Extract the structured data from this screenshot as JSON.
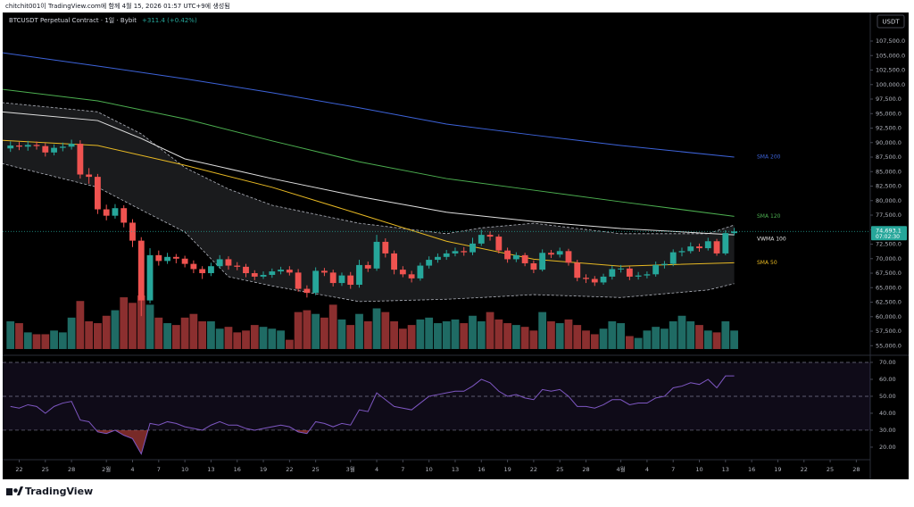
{
  "header": {
    "caption": "chitchit001이 TradingView.com에 함께 4월 15, 2026 01:57 UTC+9에 생성됨"
  },
  "chart_data": [
    {
      "type": "candlestick",
      "title": "BTCUSDT Perpetual Contract · 1일 · Bybit",
      "change": "+311.4 (+0.42%)",
      "currency": "USDT",
      "price_label": {
        "value": 74693.1,
        "label": "74,693.1"
      },
      "countdown": "07:02:30",
      "up_color": "#26a69a",
      "down_color": "#ef5350",
      "open": [
        89000,
        89500,
        89300,
        89600,
        89400,
        88300,
        89100,
        89300,
        89800,
        84500,
        84100,
        78500,
        77400,
        78700,
        76200,
        73100,
        62800,
        70600,
        69600,
        70300,
        70000,
        69100,
        68200,
        67500,
        68700,
        69900,
        68800,
        68600,
        67500,
        66900,
        67200,
        67800,
        68100,
        67600,
        64800,
        64100,
        67900,
        67600,
        65800,
        67100,
        65500,
        68900,
        68300,
        72900,
        70900,
        68100,
        67300,
        66600,
        68800,
        69800,
        70300,
        70900,
        71300,
        71100,
        72600,
        74100,
        73800,
        71400,
        69900,
        70600,
        69200,
        68100,
        71000,
        70700,
        71300,
        69300,
        66700,
        66500,
        65900,
        66900,
        68200,
        68300,
        66900,
        67100,
        67300,
        68900,
        69100,
        71100,
        71300,
        72100,
        71800,
        73000,
        70900,
        74400
      ],
      "high": [
        90200,
        90100,
        90300,
        90200,
        89900,
        89700,
        90000,
        90500,
        90400,
        85600,
        84600,
        79300,
        79400,
        79200,
        76800,
        73700,
        71800,
        71400,
        71000,
        70800,
        70500,
        69700,
        68700,
        69300,
        70600,
        70400,
        69400,
        69100,
        68000,
        67800,
        68300,
        68600,
        68700,
        68200,
        65400,
        68500,
        68400,
        68100,
        67600,
        67700,
        69800,
        69500,
        74100,
        73500,
        71400,
        68700,
        67900,
        69300,
        70400,
        70900,
        71500,
        71900,
        72000,
        73600,
        75000,
        74700,
        74200,
        71900,
        71100,
        71000,
        69700,
        71600,
        71500,
        71900,
        71700,
        69800,
        67300,
        67000,
        67400,
        68800,
        68900,
        68700,
        67700,
        67800,
        69500,
        69600,
        71600,
        71900,
        72800,
        72600,
        73600,
        73400,
        74900,
        75300
      ],
      "low": [
        88400,
        88700,
        88600,
        88800,
        87600,
        87800,
        88500,
        88800,
        83800,
        82900,
        77700,
        76600,
        76900,
        75400,
        72000,
        60100,
        62300,
        68800,
        69100,
        69200,
        68500,
        67500,
        66500,
        67000,
        68300,
        68100,
        68000,
        66800,
        66300,
        66500,
        66700,
        67300,
        67100,
        64300,
        63300,
        63700,
        67000,
        65200,
        65300,
        64800,
        65000,
        67700,
        67900,
        70200,
        67300,
        66800,
        65900,
        66200,
        68300,
        69300,
        69800,
        70400,
        70500,
        70600,
        72200,
        73100,
        70900,
        69300,
        69400,
        68700,
        67500,
        67800,
        70100,
        70200,
        68800,
        66100,
        65800,
        65300,
        65500,
        66400,
        67600,
        66300,
        66400,
        66600,
        66900,
        68300,
        68700,
        70400,
        70900,
        71200,
        71400,
        70500,
        70600,
        74000
      ],
      "close": [
        89500,
        89300,
        89600,
        89400,
        88300,
        89100,
        89300,
        89800,
        84500,
        84100,
        78500,
        77400,
        78700,
        76200,
        73100,
        62800,
        70600,
        69600,
        70300,
        70000,
        69100,
        68200,
        67500,
        68700,
        69900,
        68800,
        68600,
        67500,
        66900,
        67200,
        67800,
        68100,
        67600,
        64800,
        64100,
        67900,
        67600,
        65800,
        67100,
        65500,
        68900,
        68300,
        72900,
        70900,
        68100,
        67300,
        66600,
        68800,
        69800,
        70300,
        70900,
        71300,
        71100,
        72600,
        74100,
        73800,
        71400,
        69900,
        70600,
        69200,
        68100,
        71000,
        70700,
        71300,
        69300,
        66700,
        66500,
        65900,
        66900,
        68200,
        68300,
        66900,
        67100,
        67300,
        68900,
        69100,
        71100,
        71300,
        72100,
        71800,
        73000,
        70900,
        74400,
        74693.1
      ],
      "volume": [
        30,
        28,
        18,
        16,
        16,
        20,
        18,
        34,
        52,
        30,
        28,
        36,
        42,
        56,
        50,
        58,
        48,
        34,
        28,
        26,
        34,
        38,
        30,
        30,
        22,
        24,
        18,
        20,
        26,
        24,
        22,
        20,
        10,
        40,
        42,
        38,
        34,
        48,
        32,
        26,
        38,
        30,
        44,
        40,
        30,
        22,
        26,
        32,
        34,
        28,
        30,
        32,
        28,
        36,
        30,
        40,
        32,
        28,
        26,
        24,
        20,
        40,
        30,
        28,
        32,
        26,
        20,
        16,
        22,
        30,
        28,
        14,
        12,
        20,
        24,
        22,
        30,
        36,
        30,
        26,
        20,
        18,
        30,
        20
      ],
      "overlays": [
        {
          "name": "SMA 200",
          "color": "#3d63d9",
          "x": [
            -1,
            10,
            20,
            30,
            40,
            50,
            60,
            70,
            83
          ],
          "values": [
            105500,
            103200,
            101000,
            98600,
            96000,
            93200,
            91300,
            89500,
            87500
          ]
        },
        {
          "name": "SMA 120",
          "color": "#4caf50",
          "x": [
            -1,
            10,
            20,
            30,
            40,
            50,
            60,
            70,
            83
          ],
          "values": [
            99200,
            97200,
            94100,
            90300,
            86700,
            83800,
            81800,
            79800,
            77300
          ]
        },
        {
          "name": "VWMA 100",
          "color": "#e0e0e0",
          "x": [
            -1,
            10,
            15,
            20,
            30,
            40,
            50,
            60,
            70,
            83
          ],
          "values": [
            95300,
            93800,
            90700,
            87200,
            83800,
            80700,
            78000,
            76400,
            75200,
            74100
          ]
        },
        {
          "name": "SMA 50",
          "color": "#e8b923",
          "x": [
            -1,
            10,
            20,
            30,
            40,
            50,
            60,
            70,
            83
          ],
          "values": [
            90400,
            89500,
            86100,
            82300,
            77700,
            73000,
            69900,
            68700,
            69300
          ]
        }
      ],
      "band": {
        "x": [
          -1,
          10,
          15,
          20,
          25,
          30,
          40,
          50,
          54,
          60,
          70,
          80,
          83
        ],
        "upper": [
          96900,
          95300,
          91500,
          85700,
          82000,
          79200,
          76100,
          74300,
          75300,
          76100,
          74300,
          74300,
          75800
        ],
        "lower": [
          86400,
          82300,
          78400,
          74600,
          66900,
          65300,
          62600,
          63000,
          63300,
          63800,
          63300,
          64600,
          65700
        ]
      },
      "ylim": [
        53350,
        112270
      ],
      "yticks": [
        {
          "value": 55000,
          "label": "55,000.0"
        },
        {
          "value": 57500,
          "label": "57,500.0"
        },
        {
          "value": 60000,
          "label": "60,000.0"
        },
        {
          "value": 62500,
          "label": "62,500.0"
        },
        {
          "value": 65000,
          "label": "65,000.0"
        },
        {
          "value": 67500,
          "label": "67,500.0"
        },
        {
          "value": 70000,
          "label": "70,000.0"
        },
        {
          "value": 72500,
          "label": "72,500.0"
        },
        {
          "value": 75000,
          "label": "75,000.0"
        },
        {
          "value": 77500,
          "label": "77,500.0"
        },
        {
          "value": 80000,
          "label": "80,000.0"
        },
        {
          "value": 82500,
          "label": "82,500.0"
        },
        {
          "value": 85000,
          "label": "85,000.0"
        },
        {
          "value": 87500,
          "label": "87,500.0"
        },
        {
          "value": 90000,
          "label": "90,000.0"
        },
        {
          "value": 92500,
          "label": "92,500.0"
        },
        {
          "value": 95000,
          "label": "95,000.0"
        },
        {
          "value": 97500,
          "label": "97,500.0"
        },
        {
          "value": 100000,
          "label": "100,000.0"
        },
        {
          "value": 102500,
          "label": "102,500.0"
        },
        {
          "value": 105000,
          "label": "105,000.0"
        },
        {
          "value": 107500,
          "label": "107,500.0"
        }
      ],
      "xlim": [
        -1.2,
        98.6
      ],
      "xticks": [
        {
          "value": 1,
          "label": "22"
        },
        {
          "value": 4,
          "label": "25"
        },
        {
          "value": 7,
          "label": "28"
        },
        {
          "value": 11,
          "label": "2월"
        },
        {
          "value": 14,
          "label": "4"
        },
        {
          "value": 17,
          "label": "7"
        },
        {
          "value": 20,
          "label": "10"
        },
        {
          "value": 23,
          "label": "13"
        },
        {
          "value": 26,
          "label": "16"
        },
        {
          "value": 29,
          "label": "19"
        },
        {
          "value": 32,
          "label": "22"
        },
        {
          "value": 35,
          "label": "25"
        },
        {
          "value": 39,
          "label": "3월"
        },
        {
          "value": 42,
          "label": "4"
        },
        {
          "value": 45,
          "label": "7"
        },
        {
          "value": 48,
          "label": "10"
        },
        {
          "value": 51,
          "label": "13"
        },
        {
          "value": 54,
          "label": "16"
        },
        {
          "value": 57,
          "label": "19"
        },
        {
          "value": 60,
          "label": "22"
        },
        {
          "value": 63,
          "label": "25"
        },
        {
          "value": 66,
          "label": "28"
        },
        {
          "value": 70,
          "label": "4월"
        },
        {
          "value": 73,
          "label": "4"
        },
        {
          "value": 76,
          "label": "7"
        },
        {
          "value": 79,
          "label": "10"
        },
        {
          "value": 82,
          "label": "13"
        },
        {
          "value": 85,
          "label": "16"
        },
        {
          "value": 88,
          "label": "19"
        },
        {
          "value": 91,
          "label": "22"
        },
        {
          "value": 94,
          "label": "25"
        },
        {
          "value": 97,
          "label": "28"
        }
      ]
    },
    {
      "type": "line",
      "color": "#7e57c2",
      "values": [
        44,
        43,
        45,
        44,
        40,
        44,
        46,
        47,
        36,
        35,
        29,
        28,
        30,
        27,
        25,
        16,
        34,
        33,
        35,
        34,
        32,
        31,
        30,
        33,
        35,
        33,
        33,
        31,
        30,
        31,
        32,
        33,
        32,
        29,
        28,
        35,
        34,
        32,
        34,
        33,
        42,
        41,
        52,
        48,
        44,
        43,
        42,
        46,
        50,
        51,
        52,
        53,
        53,
        56,
        60,
        58,
        53,
        50,
        51,
        49,
        48,
        54,
        53,
        54,
        50,
        44,
        44,
        43,
        45,
        48,
        48,
        45,
        46,
        46,
        49,
        50,
        55,
        56,
        58,
        57,
        60,
        55,
        62,
        62
      ],
      "ylim": [
        12.6,
        74.2
      ],
      "band_levels": [
        30,
        50,
        70
      ],
      "yticks": [
        {
          "value": 20,
          "label": "20.00"
        },
        {
          "value": 30,
          "label": "30.00"
        },
        {
          "value": 40,
          "label": "40.00"
        },
        {
          "value": 50,
          "label": "50.00"
        },
        {
          "value": 60,
          "label": "60.00"
        },
        {
          "value": 70,
          "label": "70.00"
        }
      ]
    }
  ],
  "footer": {
    "brand": "TradingView"
  }
}
